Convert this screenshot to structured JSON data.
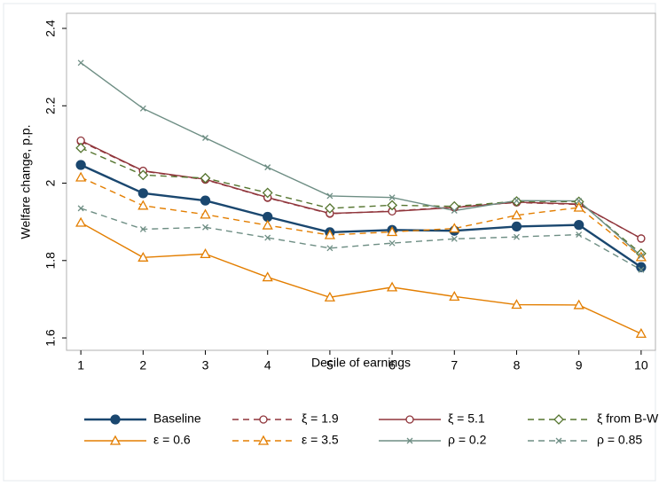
{
  "chart_data": {
    "type": "line",
    "x_label": "Decile of earnings",
    "y_label": "Welfare change, p.p.",
    "x": [
      1,
      2,
      3,
      4,
      5,
      6,
      7,
      8,
      9,
      10
    ],
    "xlim": [
      0.77,
      10.23
    ],
    "xticks": [
      1,
      2,
      3,
      4,
      5,
      6,
      7,
      8,
      9,
      10
    ],
    "ylim": [
      1.568,
      2.439
    ],
    "yticks": [
      1.6,
      1.8,
      2,
      2.2,
      2.4
    ],
    "grid": false,
    "legend": "bottom",
    "series": [
      {
        "name": "Baseline",
        "color": "#1a476f",
        "marker": "circle-filled",
        "dash": false,
        "values": [
          2.047,
          1.974,
          1.955,
          1.913,
          1.873,
          1.879,
          1.877,
          1.888,
          1.892,
          1.783
        ]
      },
      {
        "name": "ξ = 1.9",
        "color": "#90353b",
        "marker": "circle",
        "dash": true,
        "values": [
          2.108,
          2.031,
          2.009,
          1.962,
          1.921,
          1.928,
          1.938,
          1.95,
          1.945,
          1.857
        ]
      },
      {
        "name": "ξ = 5.1",
        "color": "#90353b",
        "marker": "circle",
        "dash": false,
        "values": [
          2.11,
          2.032,
          2.01,
          1.963,
          1.922,
          1.927,
          1.937,
          1.951,
          1.946,
          1.857
        ]
      },
      {
        "name": "ξ from B-W",
        "color": "#55752f",
        "marker": "diamond",
        "dash": true,
        "values": [
          2.091,
          2.021,
          2.013,
          1.975,
          1.935,
          1.943,
          1.94,
          1.953,
          1.952,
          1.818
        ]
      },
      {
        "name": "ε = 0.6",
        "color": "#e37e00",
        "marker": "triangle",
        "dash": false,
        "values": [
          1.898,
          1.808,
          1.817,
          1.757,
          1.705,
          1.731,
          1.707,
          1.686,
          1.685,
          1.611
        ]
      },
      {
        "name": "ε = 3.5",
        "color": "#e37e00",
        "marker": "triangle",
        "dash": true,
        "values": [
          2.015,
          1.942,
          1.919,
          1.891,
          1.866,
          1.874,
          1.883,
          1.917,
          1.937,
          1.809
        ]
      },
      {
        "name": "ρ = 0.2",
        "color": "#6e8e84",
        "marker": "x",
        "dash": false,
        "values": [
          2.311,
          2.193,
          2.117,
          2.041,
          1.967,
          1.963,
          1.929,
          1.955,
          1.954,
          1.812
        ]
      },
      {
        "name": "ρ = 0.85",
        "color": "#6e8e84",
        "marker": "x",
        "dash": true,
        "values": [
          1.935,
          1.881,
          1.886,
          1.859,
          1.832,
          1.845,
          1.856,
          1.861,
          1.867,
          1.776
        ]
      }
    ]
  }
}
